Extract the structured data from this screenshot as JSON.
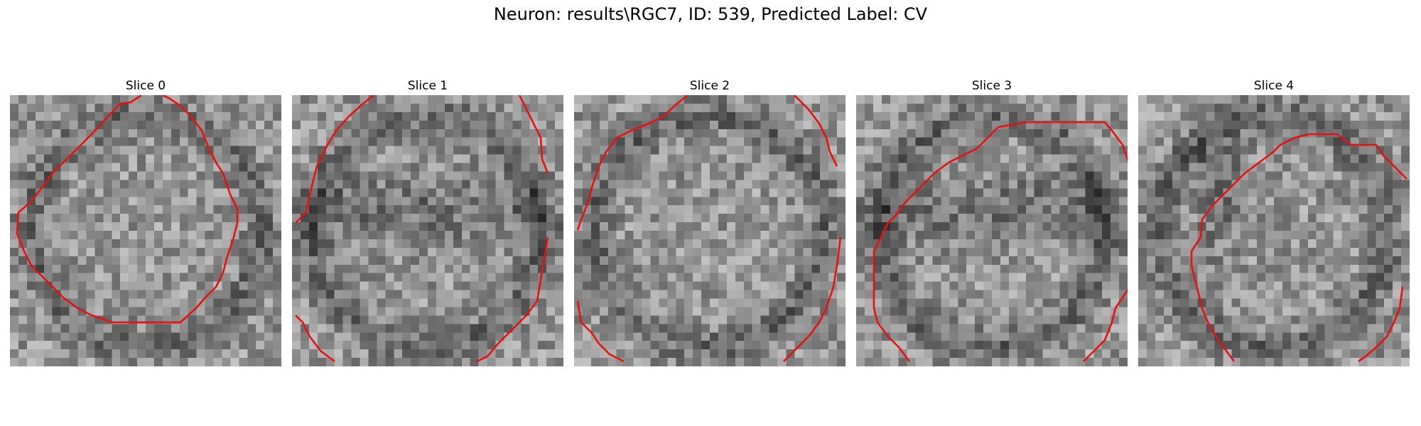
{
  "figure": {
    "title": "Neuron: results\\RGC7, ID: 539, Predicted Label: CV"
  },
  "contour_color": "#e81010",
  "colormap": "gray",
  "slices": [
    {
      "label": "Slice 0"
    },
    {
      "label": "Slice 1"
    },
    {
      "label": "Slice 2"
    },
    {
      "label": "Slice 3"
    },
    {
      "label": "Slice 4"
    }
  ]
}
